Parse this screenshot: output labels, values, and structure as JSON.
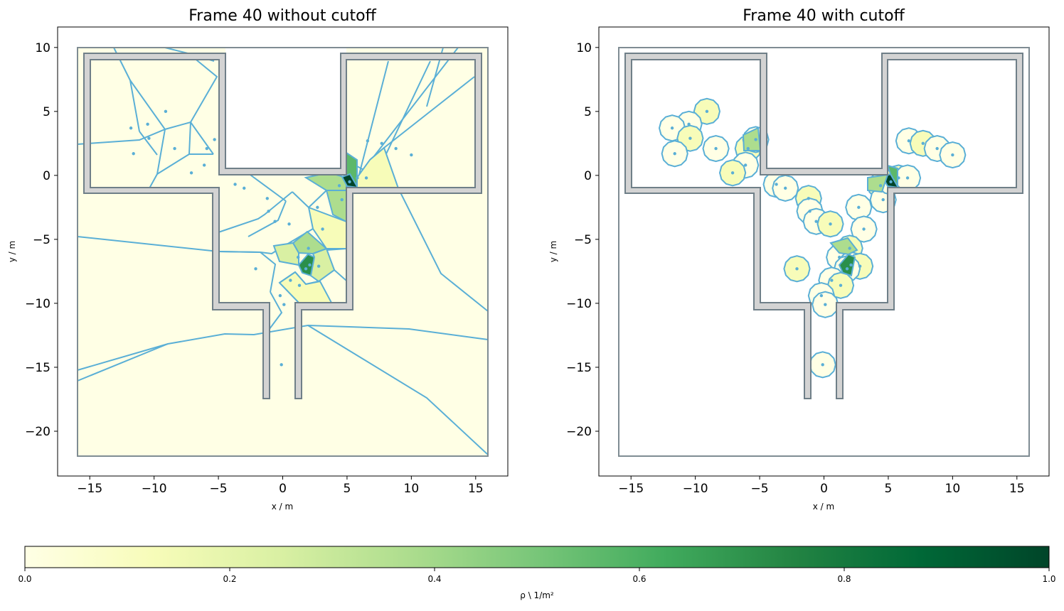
{
  "chart_data": [
    {
      "type": "voronoi",
      "title": "Frame 40 without cutoff",
      "xlabel": "x / m",
      "ylabel": "y / m",
      "xlim": [
        -17.5,
        17.5
      ],
      "ylim": [
        -23.5,
        11.6
      ],
      "xticks": [
        -15,
        -10,
        -5,
        0,
        5,
        10,
        15
      ],
      "yticks": [
        10,
        5,
        0,
        -5,
        -10,
        -15,
        -20
      ],
      "grid": false,
      "cutoff": false,
      "cell_density": [
        {
          "x": 4.5,
          "y": -0.8,
          "density": 0.3
        },
        {
          "x": 5.8,
          "y": -0.6,
          "density": 1.0
        },
        {
          "x": 4.6,
          "y": -1.8,
          "density": 0.3
        },
        {
          "x": 5.4,
          "y": 0.8,
          "density": 0.55
        },
        {
          "x": 2.0,
          "y": -5.8,
          "density": 0.3
        },
        {
          "x": 2.0,
          "y": -7.0,
          "density": 0.7
        },
        {
          "x": 1.0,
          "y": -6.3,
          "density": 0.25
        }
      ]
    },
    {
      "type": "voronoi",
      "title": "Frame 40 with cutoff",
      "xlabel": "x / m",
      "ylabel": "y / m",
      "xlim": [
        -17.5,
        17.5
      ],
      "ylim": [
        -23.5,
        11.6
      ],
      "xticks": [
        -15,
        -10,
        -5,
        0,
        5,
        10,
        15
      ],
      "yticks": [
        10,
        5,
        0,
        -5,
        -10,
        -15,
        -20
      ],
      "grid": false,
      "cutoff": true
    }
  ],
  "pedestrians": [
    [
      -9.1,
      5.0
    ],
    [
      -10.5,
      4.0
    ],
    [
      -11.8,
      3.7
    ],
    [
      -10.4,
      2.9
    ],
    [
      -11.6,
      1.7
    ],
    [
      -8.4,
      2.1
    ],
    [
      -5.9,
      2.1
    ],
    [
      -5.3,
      2.8
    ],
    [
      -6.1,
      0.8
    ],
    [
      -7.1,
      0.2
    ],
    [
      -3.7,
      -0.7
    ],
    [
      -3.0,
      -1.0
    ],
    [
      -1.2,
      -1.8
    ],
    [
      -1.1,
      -2.8
    ],
    [
      -0.6,
      -3.6
    ],
    [
      0.5,
      -3.8
    ],
    [
      2.7,
      -2.5
    ],
    [
      3.1,
      -4.2
    ],
    [
      4.4,
      -0.8
    ],
    [
      4.6,
      -1.9
    ],
    [
      5.2,
      -0.5
    ],
    [
      5.8,
      -0.2
    ],
    [
      6.5,
      -0.2
    ],
    [
      6.6,
      2.7
    ],
    [
      7.7,
      2.5
    ],
    [
      8.8,
      2.1
    ],
    [
      10.0,
      1.6
    ],
    [
      2.0,
      -5.7
    ],
    [
      1.2,
      -6.4
    ],
    [
      2.1,
      -7.0
    ],
    [
      2.8,
      -7.1
    ],
    [
      1.8,
      -7.3
    ],
    [
      0.6,
      -8.2
    ],
    [
      1.3,
      -8.6
    ],
    [
      -0.2,
      -9.4
    ],
    [
      0.1,
      -10.1
    ],
    [
      -2.1,
      -7.3
    ],
    [
      -0.1,
      -14.8
    ]
  ],
  "colorbar": {
    "label": "ρ \\ 1/m²",
    "min": 0.0,
    "max": 1.0,
    "ticks": [
      "0.0",
      "0.2",
      "0.4",
      "0.6",
      "0.8",
      "1.0"
    ],
    "colormap": "YlGn",
    "colors": [
      "#ffffe5",
      "#f7fcb9",
      "#d9f0a3",
      "#addd8e",
      "#78c679",
      "#41ab5d",
      "#238443",
      "#006837",
      "#004529"
    ]
  },
  "colors": {
    "cell_edge": "#5aafd6",
    "wall_fill": "#d3d3d3",
    "wall_edge": "#6f7f88",
    "boundary": "#7f8c93",
    "axes": "#000000"
  }
}
